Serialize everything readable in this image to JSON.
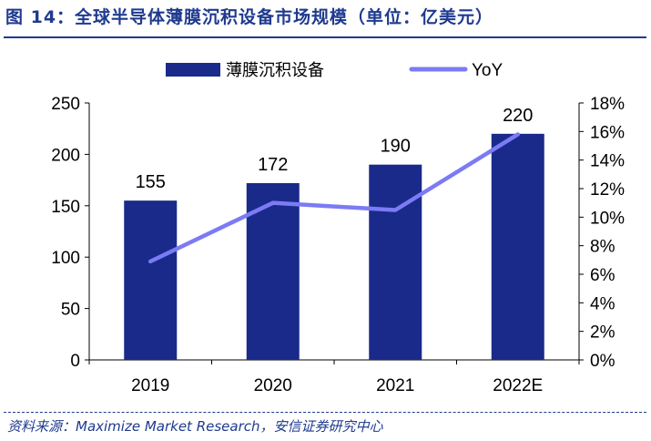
{
  "header": {
    "title": "图 14：全球半导体薄膜沉积设备市场规模（单位：亿美元）"
  },
  "footer": {
    "source": "资料来源：Maximize Market Research，安信证券研究中心"
  },
  "chart_data": {
    "type": "bar",
    "categories": [
      "2019",
      "2020",
      "2021",
      "2022E"
    ],
    "series": [
      {
        "name": "薄膜沉积设备",
        "type": "bar",
        "axis": "left",
        "values": [
          155,
          172,
          190,
          220
        ],
        "color": "#1a2a8a"
      },
      {
        "name": "YoY",
        "type": "line",
        "axis": "right",
        "values": [
          0.069,
          0.11,
          0.105,
          0.158
        ],
        "color": "#7b7bf5"
      }
    ],
    "data_labels": [
      "155",
      "172",
      "190",
      "220"
    ],
    "y_left": {
      "range": [
        0,
        250
      ],
      "ticks": [
        "0",
        "50",
        "100",
        "150",
        "200",
        "250"
      ]
    },
    "y_right": {
      "range": [
        0,
        0.18
      ],
      "ticks": [
        "0%",
        "2%",
        "4%",
        "6%",
        "8%",
        "10%",
        "12%",
        "14%",
        "16%",
        "18%"
      ]
    },
    "legend": {
      "position": "top"
    },
    "grid": false
  }
}
